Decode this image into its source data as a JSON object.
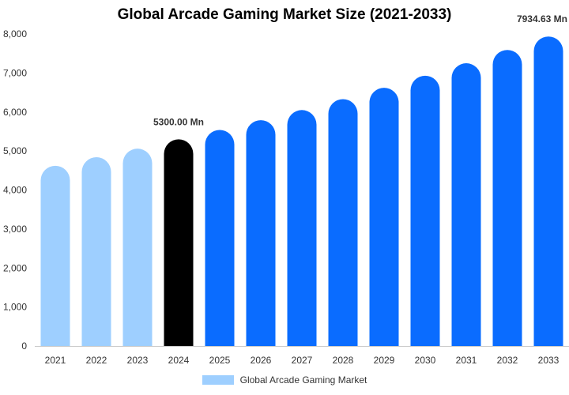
{
  "chart_data": {
    "type": "bar",
    "title": "Global Arcade Gaming Market Size (2021-2033)",
    "categories": [
      "2021",
      "2022",
      "2023",
      "2024",
      "2025",
      "2026",
      "2027",
      "2028",
      "2029",
      "2030",
      "2031",
      "2032",
      "2033"
    ],
    "series": [
      {
        "name": "Global Arcade Gaming Market",
        "values": [
          4620,
          4840,
          5060,
          5300,
          5540,
          5790,
          6050,
          6330,
          6620,
          6930,
          7250,
          7590,
          7934.63
        ]
      }
    ],
    "ylim": [
      0,
      8000
    ],
    "yticks": [
      "0",
      "1,000",
      "2,000",
      "3,000",
      "4,000",
      "5,000",
      "6,000",
      "7,000",
      "8,000"
    ],
    "annotations": [
      {
        "category": "2024",
        "text": "5300.00 Mn"
      },
      {
        "category": "2033",
        "text": "7934.63 Mn"
      }
    ],
    "colors": {
      "past": "#9ecfff",
      "current": "#000000",
      "forecast": "#0a6cff"
    },
    "grid": false,
    "legend_position": "bottom"
  }
}
